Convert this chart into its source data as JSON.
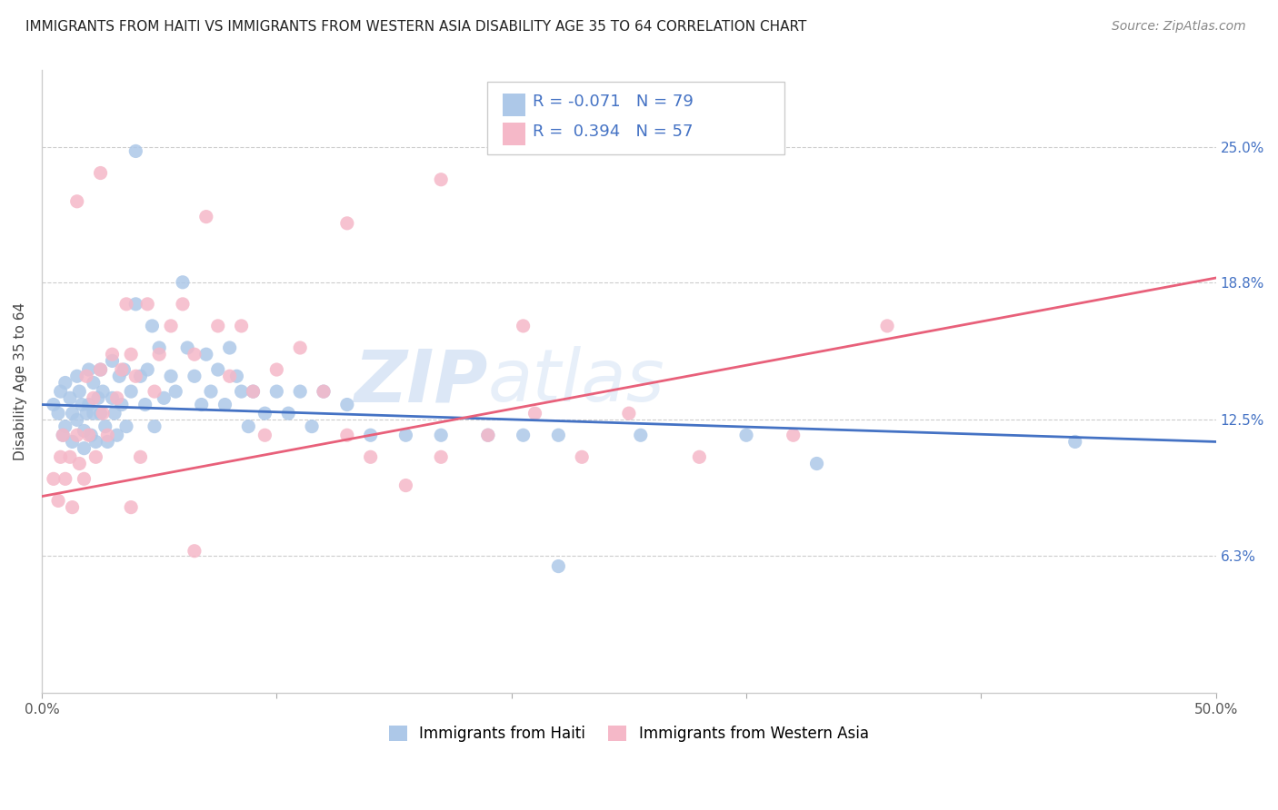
{
  "title": "IMMIGRANTS FROM HAITI VS IMMIGRANTS FROM WESTERN ASIA DISABILITY AGE 35 TO 64 CORRELATION CHART",
  "source": "Source: ZipAtlas.com",
  "ylabel": "Disability Age 35 to 64",
  "xlim": [
    0.0,
    0.5
  ],
  "ylim": [
    0.0,
    0.285
  ],
  "xticks": [
    0.0,
    0.1,
    0.2,
    0.3,
    0.4,
    0.5
  ],
  "xticklabels": [
    "0.0%",
    "",
    "",
    "",
    "",
    "50.0%"
  ],
  "yticks": [
    0.063,
    0.125,
    0.188,
    0.25
  ],
  "yticklabels": [
    "6.3%",
    "12.5%",
    "18.8%",
    "25.0%"
  ],
  "legend_label1": "Immigrants from Haiti",
  "legend_label2": "Immigrants from Western Asia",
  "r1": "-0.071",
  "n1": "79",
  "r2": "0.394",
  "n2": "57",
  "color_haiti": "#adc8e8",
  "color_western_asia": "#f5b8c8",
  "color_haiti_line": "#4472c4",
  "color_western_asia_line": "#e8607a",
  "watermark_zip": "ZIP",
  "watermark_atlas": "atlas",
  "haiti_x": [
    0.005,
    0.007,
    0.008,
    0.009,
    0.01,
    0.01,
    0.012,
    0.013,
    0.013,
    0.015,
    0.015,
    0.016,
    0.017,
    0.018,
    0.018,
    0.019,
    0.02,
    0.02,
    0.021,
    0.022,
    0.022,
    0.023,
    0.024,
    0.025,
    0.025,
    0.026,
    0.027,
    0.028,
    0.03,
    0.03,
    0.031,
    0.032,
    0.033,
    0.034,
    0.035,
    0.036,
    0.038,
    0.04,
    0.04,
    0.042,
    0.044,
    0.045,
    0.047,
    0.048,
    0.05,
    0.052,
    0.055,
    0.057,
    0.06,
    0.062,
    0.065,
    0.068,
    0.07,
    0.072,
    0.075,
    0.078,
    0.08,
    0.083,
    0.085,
    0.088,
    0.09,
    0.095,
    0.1,
    0.105,
    0.11,
    0.115,
    0.12,
    0.13,
    0.14,
    0.155,
    0.17,
    0.19,
    0.205,
    0.22,
    0.255,
    0.3,
    0.33,
    0.44,
    0.22
  ],
  "haiti_y": [
    0.132,
    0.128,
    0.138,
    0.118,
    0.142,
    0.122,
    0.135,
    0.128,
    0.115,
    0.145,
    0.125,
    0.138,
    0.132,
    0.12,
    0.112,
    0.128,
    0.148,
    0.132,
    0.118,
    0.142,
    0.128,
    0.115,
    0.135,
    0.148,
    0.128,
    0.138,
    0.122,
    0.115,
    0.152,
    0.135,
    0.128,
    0.118,
    0.145,
    0.132,
    0.148,
    0.122,
    0.138,
    0.248,
    0.178,
    0.145,
    0.132,
    0.148,
    0.168,
    0.122,
    0.158,
    0.135,
    0.145,
    0.138,
    0.188,
    0.158,
    0.145,
    0.132,
    0.155,
    0.138,
    0.148,
    0.132,
    0.158,
    0.145,
    0.138,
    0.122,
    0.138,
    0.128,
    0.138,
    0.128,
    0.138,
    0.122,
    0.138,
    0.132,
    0.118,
    0.118,
    0.118,
    0.118,
    0.118,
    0.118,
    0.118,
    0.118,
    0.105,
    0.115,
    0.058
  ],
  "western_asia_x": [
    0.005,
    0.007,
    0.008,
    0.009,
    0.01,
    0.012,
    0.013,
    0.015,
    0.016,
    0.018,
    0.019,
    0.02,
    0.022,
    0.023,
    0.025,
    0.026,
    0.028,
    0.03,
    0.032,
    0.034,
    0.036,
    0.038,
    0.04,
    0.042,
    0.045,
    0.048,
    0.05,
    0.055,
    0.06,
    0.065,
    0.07,
    0.075,
    0.08,
    0.085,
    0.09,
    0.095,
    0.1,
    0.11,
    0.12,
    0.13,
    0.14,
    0.155,
    0.17,
    0.19,
    0.21,
    0.23,
    0.25,
    0.28,
    0.32,
    0.36,
    0.17,
    0.13,
    0.205,
    0.065,
    0.025,
    0.015,
    0.038
  ],
  "western_asia_y": [
    0.098,
    0.088,
    0.108,
    0.118,
    0.098,
    0.108,
    0.085,
    0.118,
    0.105,
    0.098,
    0.145,
    0.118,
    0.135,
    0.108,
    0.148,
    0.128,
    0.118,
    0.155,
    0.135,
    0.148,
    0.178,
    0.155,
    0.145,
    0.108,
    0.178,
    0.138,
    0.155,
    0.168,
    0.178,
    0.155,
    0.218,
    0.168,
    0.145,
    0.168,
    0.138,
    0.118,
    0.148,
    0.158,
    0.138,
    0.118,
    0.108,
    0.095,
    0.108,
    0.118,
    0.128,
    0.108,
    0.128,
    0.108,
    0.118,
    0.168,
    0.235,
    0.215,
    0.168,
    0.065,
    0.238,
    0.225,
    0.085
  ]
}
